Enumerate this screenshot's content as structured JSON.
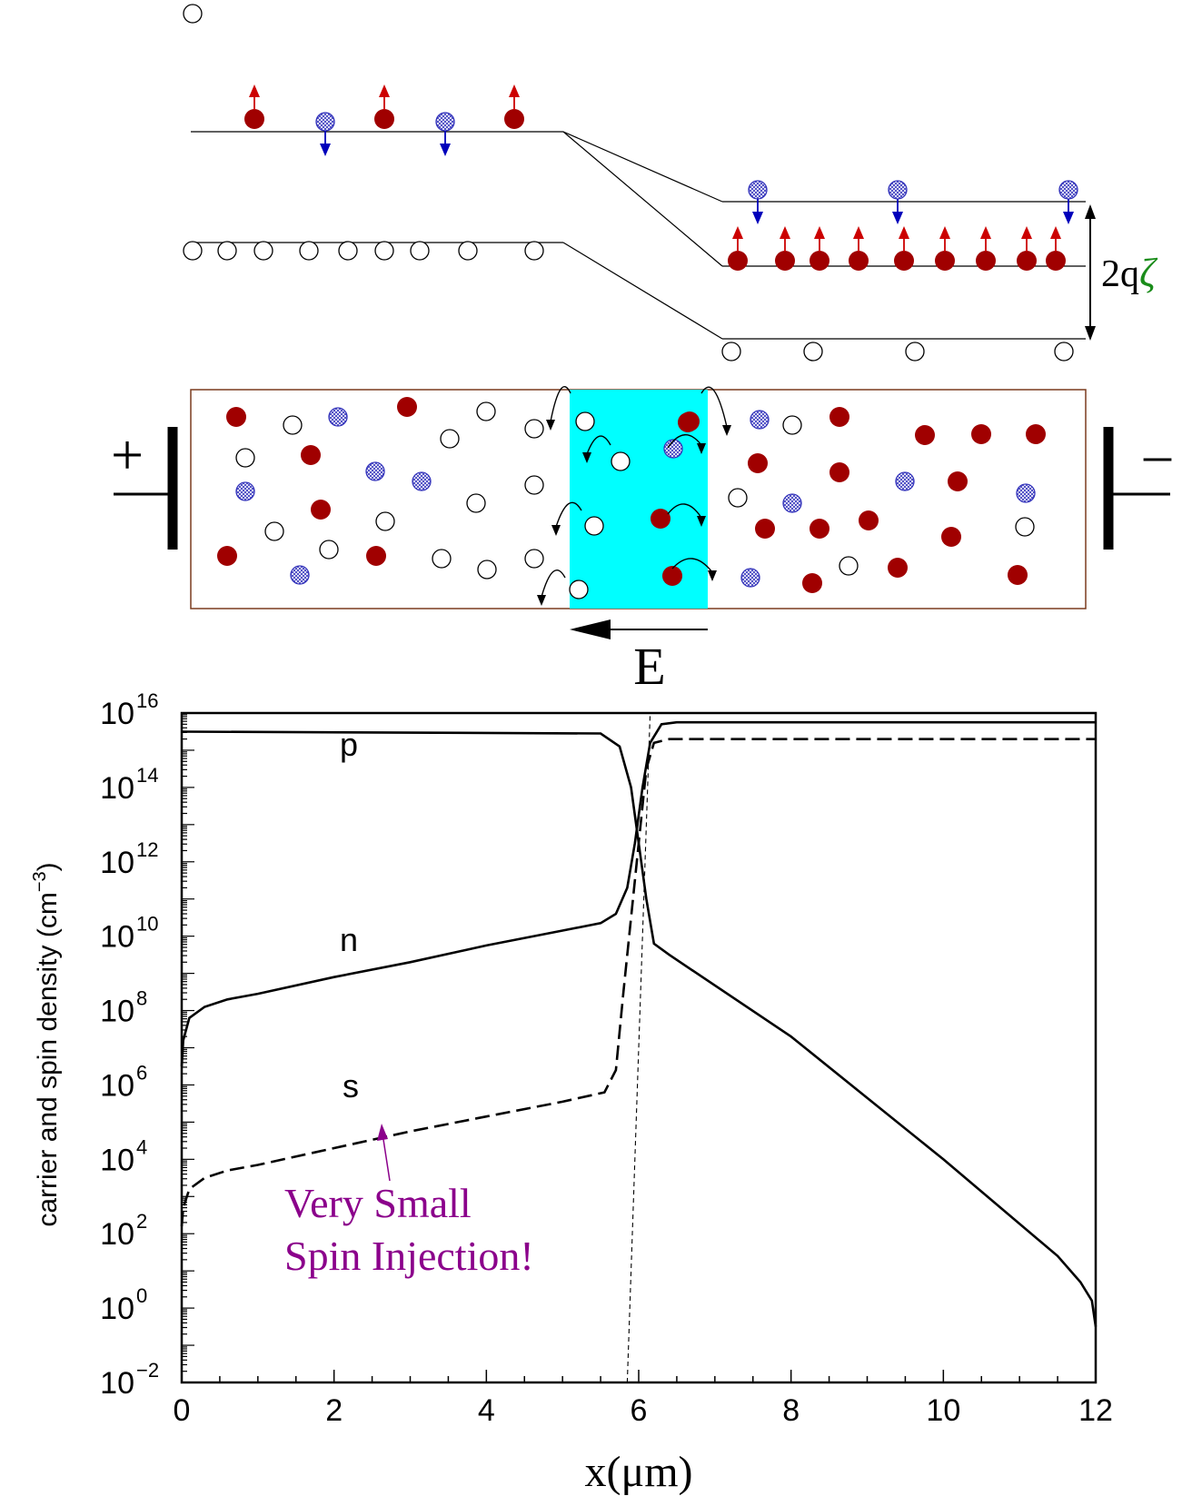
{
  "band_diagram": {
    "splitting_label_prefix": "2q",
    "splitting_label_symbol": "ζ",
    "symbol_color": "#1a8c1a"
  },
  "device": {
    "plus_label": "+",
    "minus_label": "–",
    "field_label": "E",
    "depletion_color": "#00ffff"
  },
  "colors": {
    "electron_fill": "#a00000",
    "spin_up_arrow": "#cc0000",
    "spin_down_arrow": "#0000bb",
    "hatched_particle": "#3333bb",
    "annotation": "#8b008b",
    "outline": "#7a3b1f"
  },
  "chart_data": {
    "type": "line",
    "xlabel": "x(μm)",
    "ylabel": "carrier and spin density (cm",
    "ylabel_exponent": "−3",
    "ylabel_suffix": ")",
    "xlim": [
      0,
      12
    ],
    "ylim_log10": [
      -2,
      16
    ],
    "y_scale": "log",
    "x_ticks": [
      "0",
      "2",
      "4",
      "6",
      "8",
      "10",
      "12"
    ],
    "y_tick_exponents": [
      "−2",
      "0",
      "2",
      "4",
      "6",
      "8",
      "10",
      "12",
      "14",
      "16"
    ],
    "y_tick_base": "10",
    "series": [
      {
        "name": "p",
        "style": "solid",
        "x": [
          0,
          5.5,
          5.75,
          5.9,
          6.0,
          6.1,
          6.2,
          6.4,
          8,
          10,
          11.5,
          11.8,
          11.95,
          12.0
        ],
        "log10_y": [
          15.5,
          15.45,
          15.1,
          14.0,
          12.5,
          11.0,
          9.8,
          9.5,
          7.3,
          4.0,
          1.4,
          0.7,
          0.2,
          -0.5
        ]
      },
      {
        "name": "n",
        "style": "solid",
        "x": [
          0.0,
          0.02,
          0.1,
          0.3,
          0.6,
          1.0,
          2.0,
          3.0,
          4.0,
          5.0,
          5.5,
          5.7,
          5.85,
          5.95,
          6.05,
          6.15,
          6.3,
          6.5,
          12.0
        ],
        "log10_y": [
          6.5,
          7.2,
          7.8,
          8.1,
          8.3,
          8.45,
          8.9,
          9.3,
          9.75,
          10.15,
          10.35,
          10.6,
          11.3,
          12.5,
          14.0,
          15.2,
          15.7,
          15.75,
          15.75
        ]
      },
      {
        "name": "s",
        "style": "dashed",
        "x": [
          0.0,
          0.02,
          0.1,
          0.3,
          0.6,
          1.0,
          2.0,
          3.0,
          4.0,
          5.0,
          5.55,
          5.7,
          5.8,
          5.9,
          6.0,
          6.1,
          6.2,
          6.4,
          12.0
        ],
        "log10_y": [
          2.2,
          2.7,
          3.2,
          3.5,
          3.7,
          3.85,
          4.3,
          4.75,
          5.15,
          5.55,
          5.8,
          6.4,
          8.5,
          10.5,
          12.5,
          14.5,
          15.2,
          15.3,
          15.3
        ]
      },
      {
        "name": "",
        "style": "thin-dashed",
        "x": [
          5.85,
          6.15
        ],
        "log10_y": [
          -2,
          16
        ]
      }
    ],
    "curve_labels": [
      "p",
      "n",
      "s"
    ],
    "annotation_line1": "Very Small",
    "annotation_line2": "Spin Injection!"
  }
}
